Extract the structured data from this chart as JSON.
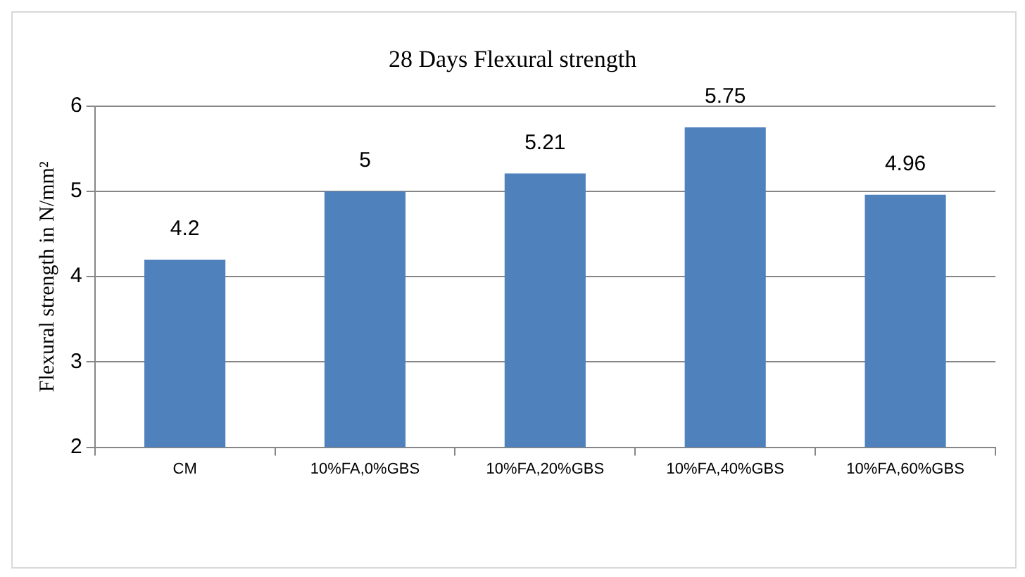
{
  "chart_data": {
    "type": "bar",
    "title": "28 Days Flexural strength",
    "ylabel": "Flexural strength in N/mm²",
    "categories": [
      "CM",
      "10%FA,0%GBS",
      "10%FA,20%GBS",
      "10%FA,40%GBS",
      "10%FA,60%GBS"
    ],
    "values": [
      4.2,
      5,
      5.21,
      5.75,
      4.96
    ],
    "color": "#4f81bd",
    "ylim": [
      2,
      6
    ],
    "yticks": [
      2,
      3,
      4,
      5,
      6
    ],
    "grid": "y",
    "data_labels": true,
    "legend": false
  }
}
